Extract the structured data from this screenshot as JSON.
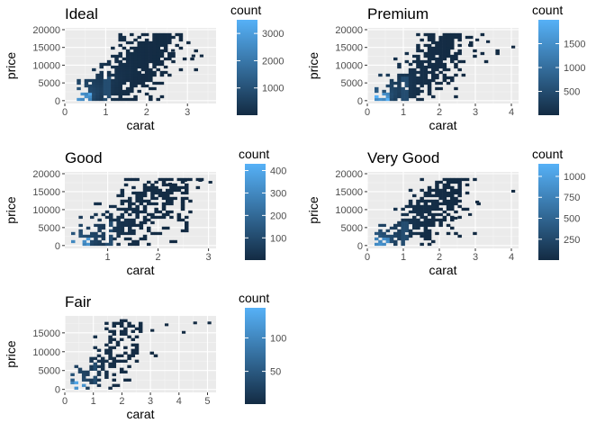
{
  "chart_data": [
    {
      "type": "heatmap",
      "title": "Ideal",
      "xlabel": "carat",
      "ylabel": "price",
      "xlim": [
        0,
        3.7
      ],
      "ylim": [
        -800,
        20500
      ],
      "xticks": [
        0,
        1,
        2,
        3
      ],
      "yticks": [
        0,
        5000,
        10000,
        15000,
        20000
      ],
      "grid": true,
      "legend": {
        "title": "count",
        "position": "right",
        "min": 1,
        "max": 3500,
        "ticks": [
          1000,
          2000,
          3000
        ]
      },
      "density": {
        "shape": 1.0,
        "maxcarat": 3.6,
        "outliers": [
          [
            2.6,
            14500
          ],
          [
            3.1,
            13000
          ],
          [
            3.3,
            13000
          ]
        ]
      }
    },
    {
      "type": "heatmap",
      "title": "Premium",
      "xlabel": "carat",
      "ylabel": "price",
      "xlim": [
        0,
        4.2
      ],
      "ylim": [
        -800,
        20500
      ],
      "xticks": [
        0,
        1,
        2,
        3,
        4
      ],
      "yticks": [
        0,
        5000,
        10000,
        15000,
        20000
      ],
      "grid": true,
      "legend": {
        "title": "count",
        "position": "right",
        "min": 1,
        "max": 2000,
        "ticks": [
          500,
          1000,
          1500
        ]
      },
      "density": {
        "shape": 0.9,
        "maxcarat": 4.0,
        "outliers": [
          [
            3.0,
            17500
          ],
          [
            3.3,
            17000
          ],
          [
            4.0,
            15500
          ],
          [
            2.8,
            16000
          ]
        ]
      }
    },
    {
      "type": "heatmap",
      "title": "Good",
      "xlabel": "carat",
      "ylabel": "price",
      "xlim": [
        0.15,
        3.15
      ],
      "ylim": [
        -800,
        20500
      ],
      "xticks": [
        1,
        2,
        3
      ],
      "yticks": [
        0,
        5000,
        10000,
        15000,
        20000
      ],
      "grid": true,
      "legend": {
        "title": "count",
        "position": "right",
        "min": 1,
        "max": 430,
        "ticks": [
          100,
          200,
          300,
          400
        ]
      },
      "density": {
        "shape": 0.65,
        "maxcarat": 3.0,
        "outliers": [
          [
            2.5,
            18500
          ],
          [
            2.8,
            18500
          ],
          [
            3.0,
            18000
          ],
          [
            2.2,
            17500
          ]
        ]
      }
    },
    {
      "type": "heatmap",
      "title": "Very Good",
      "xlabel": "carat",
      "ylabel": "price",
      "xlim": [
        0,
        4.2
      ],
      "ylim": [
        -800,
        20500
      ],
      "xticks": [
        0,
        1,
        2,
        3,
        4
      ],
      "yticks": [
        0,
        5000,
        10000,
        15000,
        20000
      ],
      "grid": true,
      "legend": {
        "title": "count",
        "position": "right",
        "min": 1,
        "max": 1150,
        "ticks": [
          250,
          500,
          750,
          1000
        ]
      },
      "density": {
        "shape": 0.8,
        "maxcarat": 4.0,
        "outliers": [
          [
            2.8,
            9000
          ],
          [
            3.0,
            12500
          ],
          [
            4.0,
            15500
          ],
          [
            2.4,
            8000
          ]
        ]
      }
    },
    {
      "type": "heatmap",
      "title": "Fair",
      "xlabel": "carat",
      "ylabel": "price",
      "xlim": [
        0,
        5.3
      ],
      "ylim": [
        -800,
        19500
      ],
      "xticks": [
        0,
        1,
        2,
        3,
        4,
        5
      ],
      "yticks": [
        0,
        5000,
        10000,
        15000
      ],
      "grid": true,
      "legend": {
        "title": "count",
        "position": "right",
        "min": 1,
        "max": 145,
        "ticks": [
          50,
          100
        ]
      },
      "density": {
        "shape": 0.55,
        "maxcarat": 5.0,
        "outliers": [
          [
            4.5,
            18000
          ],
          [
            5.0,
            18000
          ],
          [
            4.1,
            15500
          ],
          [
            3.5,
            17500
          ],
          [
            3.0,
            16000
          ]
        ]
      }
    }
  ],
  "colors": {
    "panel_background": "#ebebeb",
    "grid_major": "#ffffff",
    "grid_minor": "#f5f5f5",
    "gradient_low": "#132b43",
    "gradient_high": "#56b1f7",
    "tick_text": "#4d4d4d"
  }
}
